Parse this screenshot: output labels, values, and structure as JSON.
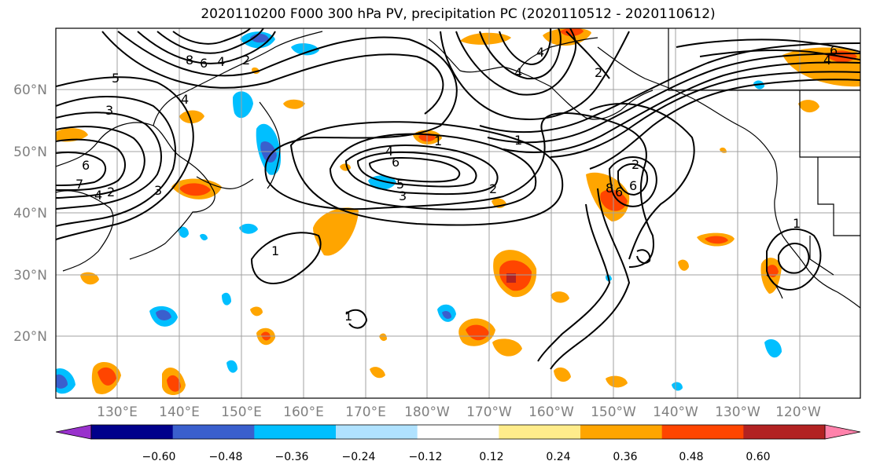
{
  "title": "2020110200 F000 300 hPa PV, precipitation PC (2020110512 - 2020110612)",
  "lon_labels": [
    "130°E",
    "140°E",
    "150°E",
    "160°E",
    "170°E",
    "180°W",
    "170°W",
    "160°W",
    "150°W",
    "140°W",
    "130°W",
    "120°W"
  ],
  "lat_labels": [
    "60°N",
    "50°N",
    "40°N",
    "30°N",
    "20°N"
  ],
  "colorbar": {
    "colors": [
      "#9932cc",
      "#00008b",
      "#3a5fcd",
      "#00bfff",
      "#b0e2ff",
      "#ffffff",
      "#ffec8b",
      "#ffa500",
      "#ff4500",
      "#b22222",
      "#ff82ab"
    ],
    "ticks": [
      "−0.60",
      "−0.48",
      "−0.36",
      "−0.24",
      "−0.12",
      "0.12",
      "0.24",
      "0.36",
      "0.48",
      "0.60"
    ]
  },
  "contour_labels": [
    "5",
    "8",
    "6",
    "4",
    "2",
    "4",
    "3",
    "6",
    "7",
    "4",
    "2",
    "3",
    "4",
    "6",
    "5",
    "3",
    "2",
    "1",
    "1",
    "4",
    "4",
    "2",
    "6",
    "8",
    "6",
    "2",
    "4",
    "6",
    "1",
    "1",
    "1"
  ],
  "map_style": {
    "ocean": "#ffffff",
    "coast": "#000000",
    "pv_contour": "#000000",
    "grid": "#a0a0a0"
  }
}
